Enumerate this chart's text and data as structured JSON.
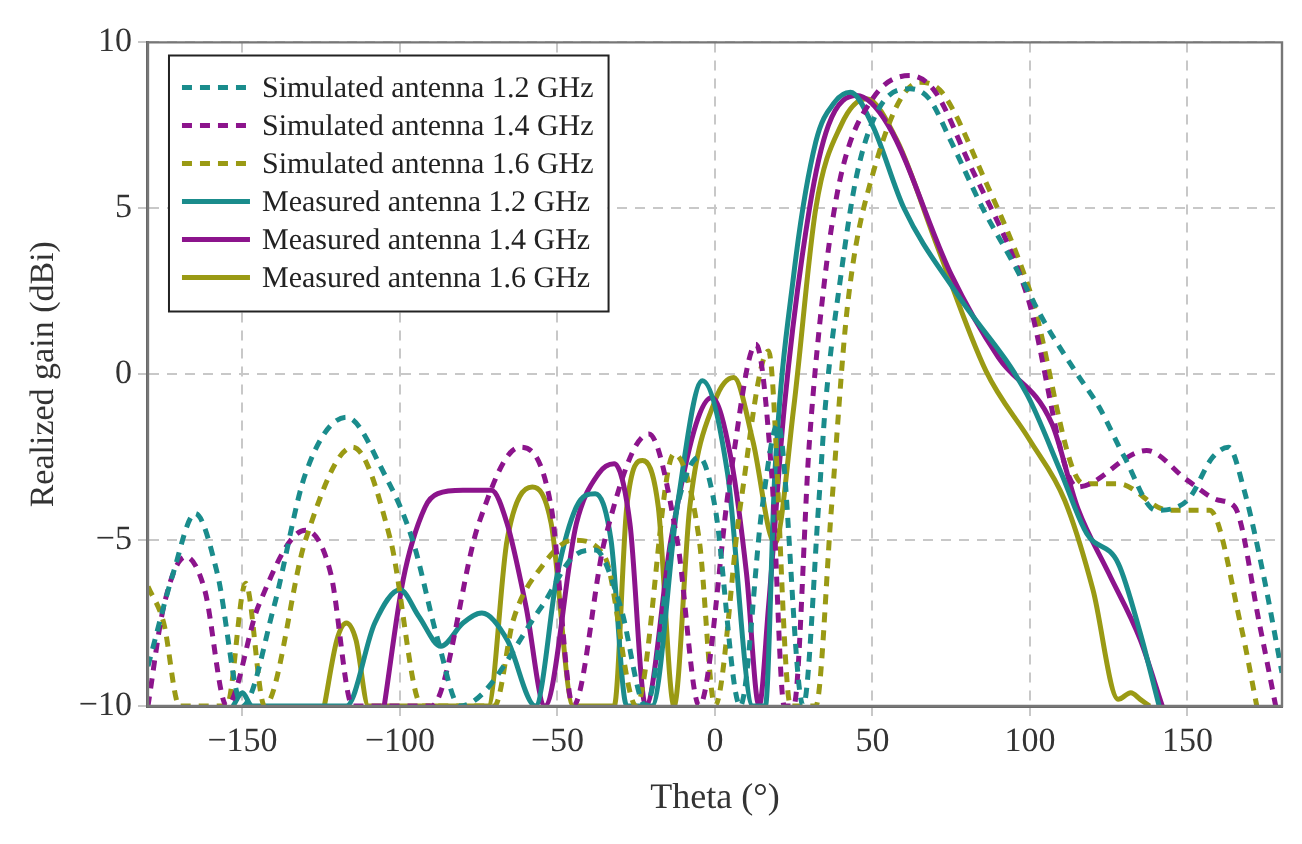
{
  "chart_data": {
    "type": "line",
    "xlabel": "Theta (°)",
    "ylabel": "Realized gain (dBi)",
    "xlim": [
      -180,
      180
    ],
    "xticks": [
      -150,
      -100,
      -50,
      0,
      50,
      100,
      150
    ],
    "ylim": [
      -10,
      10
    ],
    "yticks": [
      -10,
      -5,
      0,
      5,
      10
    ],
    "grid": true,
    "legend": "top left",
    "marker": "none",
    "series": [
      {
        "name": "Simulated antenna 1.2 GHz",
        "color": "#1a8c8c",
        "line_style": "dashed",
        "x": [
          -180,
          -172,
          -165,
          -158,
          -150,
          -140,
          -130,
          -117,
          -105,
          -96,
          -88,
          -81,
          -55,
          -45,
          -38,
          -30,
          -22,
          -12,
          -5,
          0,
          8,
          15,
          20,
          28,
          33,
          35,
          40,
          45,
          52,
          62,
          68,
          75,
          85,
          95,
          105,
          115,
          122,
          130,
          140,
          150,
          158,
          163,
          168,
          174,
          180
        ],
        "values": [
          -8.8,
          -6,
          -4.2,
          -6,
          -10,
          -7,
          -3,
          -1.3,
          -3,
          -5,
          -8,
          -10,
          -7,
          -5.5,
          -5.3,
          -7,
          -10,
          -4,
          -2.5,
          -4,
          -10,
          -4,
          -1.5,
          -10,
          -3.8,
          -1,
          3,
          6,
          8,
          8.6,
          8.3,
          7,
          5,
          3.3,
          1.5,
          0,
          -1,
          -2.5,
          -4.1,
          -3.8,
          -2.5,
          -2.2,
          -3.5,
          -6,
          -9
        ]
      },
      {
        "name": "Simulated antenna 1.4 GHz",
        "color": "#8c148c",
        "line_style": "dashed",
        "x": [
          -180,
          -175,
          -168,
          -162,
          -155,
          -145,
          -130,
          -122,
          -115,
          -90,
          -75,
          -62,
          -52,
          -45,
          -35,
          -21,
          -12,
          -5,
          5,
          13,
          18,
          22,
          25,
          30,
          35,
          40,
          50,
          62,
          70,
          80,
          99,
          115,
          137,
          150,
          160,
          165,
          173,
          178
        ],
        "values": [
          -10,
          -7,
          -5.5,
          -6.5,
          -10,
          -7,
          -4.7,
          -6,
          -10,
          -10,
          -4.5,
          -2.2,
          -4,
          -10,
          -5,
          -1.8,
          -5,
          -10,
          -3,
          0.9,
          -3,
          -10,
          -10,
          -2,
          3,
          6,
          8.3,
          9,
          8.5,
          6.5,
          2.4,
          -3.4,
          -2.3,
          -3.2,
          -3.8,
          -4,
          -7.6,
          -10
        ]
      },
      {
        "name": "Simulated antenna 1.6 GHz",
        "color": "#9a9a14",
        "line_style": "dashed",
        "x": [
          -180,
          -175,
          -170,
          -155,
          -149,
          -143,
          -130,
          -115,
          -103,
          -93,
          -70,
          -64,
          -55,
          -45,
          -35,
          -25,
          -13,
          -5,
          0,
          8,
          17,
          24,
          32,
          37,
          42,
          50,
          65,
          72,
          85,
          100,
          117,
          128,
          144,
          157,
          167,
          172
        ],
        "values": [
          -6.4,
          -7.5,
          -10,
          -10,
          -6.3,
          -10,
          -5,
          -2.2,
          -5,
          -10,
          -10,
          -7.4,
          -5.8,
          -5,
          -5.5,
          -10,
          -2.4,
          -5,
          -10,
          -4,
          0.7,
          -10,
          -10,
          -4,
          2,
          6,
          8.8,
          8.5,
          6,
          2.5,
          -3.3,
          -3.3,
          -4.1,
          -4.1,
          -7.6,
          -10
        ]
      },
      {
        "name": "Measured antenna 1.2 GHz",
        "color": "#1a8c8c",
        "line_style": "solid",
        "x": [
          -153,
          -150,
          -147,
          -117,
          -108,
          -100,
          -94,
          -87,
          -80,
          -74,
          -66,
          -57,
          -50,
          -44,
          -38,
          -33,
          -28,
          -20,
          -12,
          -4,
          4,
          12,
          16,
          19,
          25,
          32,
          38,
          43,
          50,
          60,
          77,
          99,
          110,
          118,
          128,
          135,
          141
        ],
        "values": [
          -10,
          -9.6,
          -10,
          -10,
          -7.5,
          -6.5,
          -7.3,
          -8.2,
          -7.5,
          -7.2,
          -8,
          -10,
          -6,
          -4,
          -3.6,
          -5,
          -10,
          -10,
          -4,
          -0.2,
          -3,
          -10,
          -10,
          -3,
          3,
          7,
          8.2,
          8.5,
          7.5,
          5,
          2.4,
          -0.6,
          -3,
          -4.8,
          -5.7,
          -7.8,
          -10
        ]
      },
      {
        "name": "Measured antenna 1.4 GHz",
        "color": "#8c148c",
        "line_style": "solid",
        "x": [
          -105,
          -99,
          -92,
          -88,
          -80,
          -71,
          -66,
          -60,
          -54,
          -44,
          -37,
          -32,
          -27,
          -22,
          -14,
          -6,
          -1,
          5,
          10,
          14,
          17,
          22,
          30,
          36,
          45,
          55,
          75,
          90,
          107,
          115,
          125,
          135,
          142
        ],
        "values": [
          -10,
          -6.2,
          -4,
          -3.6,
          -3.5,
          -3.5,
          -4.5,
          -7,
          -10,
          -4.5,
          -3,
          -2.7,
          -4.5,
          -10,
          -5,
          -1.5,
          -0.7,
          -2.5,
          -6,
          -10,
          -7,
          -1,
          5,
          7.5,
          8.4,
          7.5,
          3,
          0.5,
          -1.5,
          -4,
          -6,
          -8,
          -10
        ]
      },
      {
        "name": "Measured antenna 1.6 GHz",
        "color": "#9a9a14",
        "line_style": "solid",
        "x": [
          -124,
          -120,
          -117,
          -114,
          -110,
          -72,
          -66,
          -58,
          -52,
          -45,
          -32,
          -28,
          -23,
          -18,
          -13,
          -8,
          0,
          6,
          12,
          19,
          25,
          32,
          40,
          48,
          58,
          70,
          86,
          100,
          111,
          120,
          128,
          132,
          135,
          138
        ],
        "values": [
          -10,
          -8,
          -7.5,
          -8,
          -10,
          -10,
          -5,
          -3.4,
          -4.5,
          -10,
          -10,
          -4,
          -2.6,
          -4,
          -10,
          -4,
          -0.8,
          -0.1,
          -2,
          -5.1,
          -1,
          5,
          7.5,
          8.3,
          7,
          4,
          0.1,
          -2,
          -3.8,
          -6.5,
          -9.8,
          -9.6,
          -9.8,
          -10
        ]
      }
    ]
  }
}
